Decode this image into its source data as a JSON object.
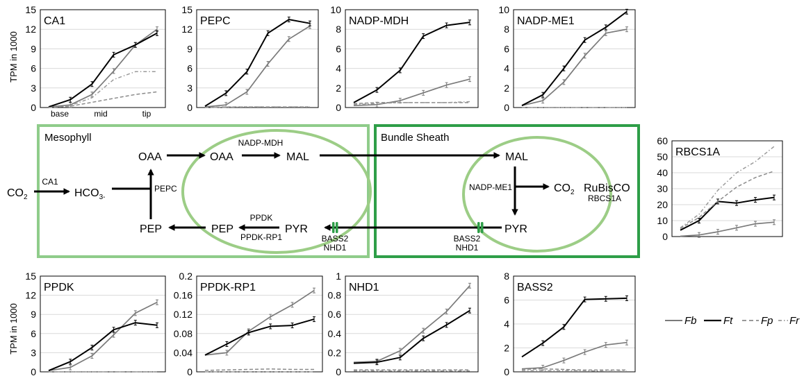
{
  "figure": {
    "y_axis_label": "TPM in 1000",
    "x_ticks": [
      "base",
      "mid",
      "tip"
    ]
  },
  "colors": {
    "Fb": "#7a7a7a",
    "Ft": "#000000",
    "Fp": "#8a8a8a",
    "Fr": "#9a9a9a",
    "mesophyll_border": "#8fcc8a",
    "bundle_sheath_border": "#2e9e48",
    "chloroplast": "#9ccd86",
    "transporter": "#2e9e48",
    "grid": "#d9d9d9"
  },
  "legend": [
    {
      "name": "Fb",
      "style": "solid",
      "color": "#7a7a7a"
    },
    {
      "name": "Ft",
      "style": "solid",
      "color": "#000000"
    },
    {
      "name": "Fp",
      "style": "dashed",
      "color": "#8a8a8a"
    },
    {
      "name": "Fr",
      "style": "dashdot",
      "color": "#9a9a9a"
    }
  ],
  "chart_data": [
    {
      "type": "line",
      "title": "CA1",
      "ylabel": "TPM in 1000",
      "yticks": [
        "0",
        "3",
        "6",
        "9",
        "12",
        "15"
      ],
      "ylim": [
        0,
        15
      ],
      "series": [
        {
          "name": "Fb",
          "values": [
            0.1,
            0.4,
            2.0,
            5.6,
            9.6,
            12.0
          ]
        },
        {
          "name": "Ft",
          "values": [
            0.1,
            1.2,
            3.6,
            8.1,
            9.6,
            11.4
          ]
        },
        {
          "name": "Fp",
          "values": [
            0.0,
            0.2,
            0.8,
            1.4,
            2.0,
            2.4
          ]
        },
        {
          "name": "Fr",
          "values": [
            0.0,
            0.3,
            1.5,
            4.3,
            5.5,
            5.5
          ]
        }
      ]
    },
    {
      "type": "line",
      "title": "PEPC",
      "ylabel": "",
      "yticks": [
        "0",
        "3",
        "6",
        "9",
        "12",
        "15"
      ],
      "ylim": [
        0,
        15
      ],
      "series": [
        {
          "name": "Fb",
          "values": [
            0.1,
            0.4,
            2.4,
            6.7,
            10.5,
            12.5
          ]
        },
        {
          "name": "Ft",
          "values": [
            0.2,
            2.2,
            5.5,
            11.4,
            13.5,
            12.9
          ]
        },
        {
          "name": "Fp",
          "values": [
            0.0,
            0.1,
            0.1,
            0.1,
            0.1,
            0.1
          ]
        },
        {
          "name": "Fr",
          "values": [
            0.0,
            0.05,
            0.1,
            0.1,
            0.1,
            0.1
          ]
        }
      ]
    },
    {
      "type": "line",
      "title": "NADP-MDH",
      "ylabel": "",
      "yticks": [
        "0",
        "2",
        "4",
        "6",
        "8",
        "10"
      ],
      "ylim": [
        0,
        10
      ],
      "series": [
        {
          "name": "Fb",
          "values": [
            0.2,
            0.3,
            0.7,
            1.5,
            2.3,
            2.9
          ]
        },
        {
          "name": "Ft",
          "values": [
            0.5,
            1.8,
            3.8,
            7.3,
            8.4,
            8.7
          ]
        },
        {
          "name": "Fp",
          "values": [
            0.4,
            0.5,
            0.5,
            0.5,
            0.5,
            0.5
          ]
        },
        {
          "name": "Fr",
          "values": [
            0.3,
            0.4,
            0.5,
            0.5,
            0.5,
            0.6
          ]
        }
      ]
    },
    {
      "type": "line",
      "title": "NADP-ME1",
      "ylabel": "",
      "yticks": [
        "0",
        "2",
        "4",
        "6",
        "8",
        "10"
      ],
      "ylim": [
        0,
        10
      ],
      "series": [
        {
          "name": "Fb",
          "values": [
            0.2,
            0.7,
            2.6,
            5.3,
            7.6,
            8.0
          ]
        },
        {
          "name": "Ft",
          "values": [
            0.2,
            1.3,
            4.0,
            6.9,
            8.2,
            9.8
          ]
        },
        {
          "name": "Fp",
          "values": [
            0.0,
            0.0,
            0.0,
            0.0,
            0.0,
            0.0
          ]
        },
        {
          "name": "Fr",
          "values": [
            0.0,
            0.0,
            0.0,
            0.0,
            0.0,
            0.0
          ]
        }
      ]
    },
    {
      "type": "line",
      "title": "RBCS1A",
      "ylabel": "",
      "yticks": [
        "0",
        "10",
        "20",
        "30",
        "40",
        "50",
        "60"
      ],
      "ylim": [
        0,
        60
      ],
      "series": [
        {
          "name": "Fb",
          "values": [
            0.2,
            1.0,
            3.0,
            5.5,
            8.0,
            9.0
          ]
        },
        {
          "name": "Ft",
          "values": [
            4.0,
            10.0,
            22.0,
            21.0,
            23.0,
            24.5
          ]
        },
        {
          "name": "Fp",
          "values": [
            5.0,
            12.0,
            22.0,
            31.0,
            37.0,
            41.0
          ]
        },
        {
          "name": "Fr",
          "values": [
            5.5,
            14.0,
            29.0,
            40.0,
            47.0,
            56.5
          ]
        }
      ]
    },
    {
      "type": "line",
      "title": "PPDK",
      "ylabel": "TPM in 1000",
      "yticks": [
        "0",
        "3",
        "6",
        "9",
        "12",
        "15"
      ],
      "ylim": [
        0,
        15
      ],
      "series": [
        {
          "name": "Fb",
          "values": [
            0.2,
            0.7,
            2.5,
            5.8,
            9.2,
            10.9
          ]
        },
        {
          "name": "Ft",
          "values": [
            0.2,
            1.6,
            3.8,
            6.6,
            7.7,
            7.3
          ]
        },
        {
          "name": "Fp",
          "values": [
            0.0,
            0.0,
            0.0,
            0.0,
            0.0,
            0.0
          ]
        },
        {
          "name": "Fr",
          "values": [
            0.0,
            0.0,
            0.0,
            0.0,
            0.0,
            0.0
          ]
        }
      ]
    },
    {
      "type": "line",
      "title": "PPDK-RP1",
      "ylabel": "",
      "yticks": [
        "0",
        "0.04",
        "0.08",
        "0.12",
        "0.16",
        "0.2"
      ],
      "ylim": [
        0,
        0.2
      ],
      "series": [
        {
          "name": "Fb",
          "values": [
            0.035,
            0.04,
            0.085,
            0.115,
            0.14,
            0.17
          ]
        },
        {
          "name": "Ft",
          "values": [
            0.035,
            0.058,
            0.082,
            0.095,
            0.097,
            0.11
          ]
        },
        {
          "name": "Fp",
          "values": [
            0.003,
            0.004,
            0.005,
            0.006,
            0.005,
            0.005
          ]
        },
        {
          "name": "Fr",
          "values": [
            0.0,
            0.0,
            0.0,
            0.0,
            0.0,
            0.0
          ]
        }
      ]
    },
    {
      "type": "line",
      "title": "NHD1",
      "ylabel": "",
      "yticks": [
        "0",
        "0.2",
        "0.4",
        "0.6",
        "0.8",
        "1"
      ],
      "ylim": [
        0,
        1
      ],
      "series": [
        {
          "name": "Fb",
          "values": [
            0.1,
            0.11,
            0.22,
            0.43,
            0.63,
            0.9
          ]
        },
        {
          "name": "Ft",
          "values": [
            0.09,
            0.1,
            0.15,
            0.35,
            0.49,
            0.64
          ]
        },
        {
          "name": "Fp",
          "values": [
            0.02,
            0.02,
            0.02,
            0.02,
            0.02,
            0.02
          ]
        },
        {
          "name": "Fr",
          "values": [
            0.01,
            0.01,
            0.01,
            0.01,
            0.01,
            0.01
          ]
        }
      ]
    },
    {
      "type": "line",
      "title": "BASS2",
      "ylabel": "",
      "yticks": [
        "0",
        "2",
        "4",
        "6",
        "8"
      ],
      "ylim": [
        0,
        8
      ],
      "series": [
        {
          "name": "Fb",
          "values": [
            0.25,
            0.35,
            0.95,
            1.65,
            2.25,
            2.45
          ]
        },
        {
          "name": "Ft",
          "values": [
            1.25,
            2.4,
            3.75,
            6.05,
            6.1,
            6.15
          ]
        },
        {
          "name": "Fp",
          "values": [
            0.2,
            0.25,
            0.2,
            0.15,
            0.15,
            0.15
          ]
        },
        {
          "name": "Fr",
          "values": [
            0.1,
            0.1,
            0.1,
            0.1,
            0.05,
            0.05
          ]
        }
      ]
    }
  ],
  "diagram": {
    "mesophyll_label": "Mesophyll",
    "bundle_sheath_label": "Bundle Sheath",
    "co2": "CO",
    "co2_sub": "2",
    "ca1": "CA1",
    "hco3": "HCO",
    "hco3_sub": "3-",
    "pepc": "PEPC",
    "oaa": "OAA",
    "nadp_mdh": "NADP-MDH",
    "mal": "MAL",
    "pep": "PEP",
    "ppdk": "PPDK",
    "ppdk_rp1": "PPDK-RP1",
    "pyr": "PYR",
    "bass2": "BASS2",
    "nhd1": "NHD1",
    "nadp_me1": "NADP-ME1",
    "rubisco": "RuBisCO",
    "rbcs1a": "RBCS1A"
  }
}
